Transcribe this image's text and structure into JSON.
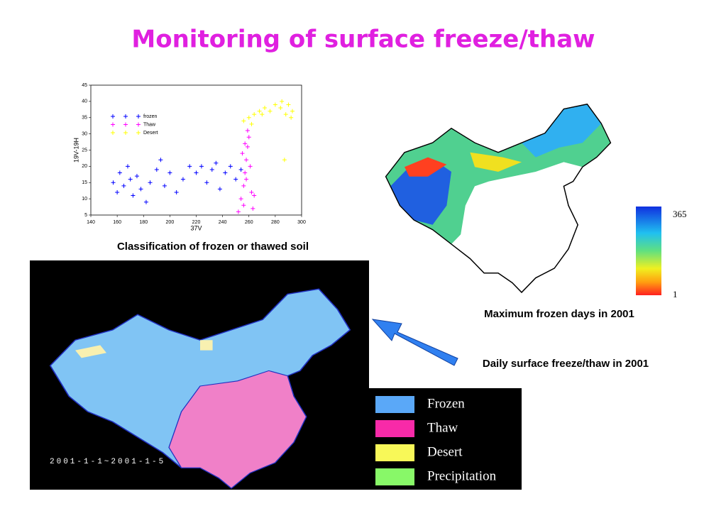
{
  "title": "Monitoring of surface freeze/thaw",
  "chart_data": {
    "type": "scatter",
    "x_label": "37V",
    "y_label": "19V-19H",
    "xlim": [
      140,
      300
    ],
    "ylim": [
      5,
      45
    ],
    "xticks": [
      140,
      160,
      180,
      200,
      220,
      240,
      260,
      280,
      300
    ],
    "yticks": [
      5,
      10,
      15,
      20,
      25,
      30,
      35,
      40,
      45
    ],
    "series": [
      {
        "name": "frozen",
        "color": "#0000ff",
        "x": [
          157,
          160,
          162,
          165,
          168,
          170,
          172,
          175,
          178,
          182,
          185,
          190,
          193,
          196,
          200,
          205,
          210,
          215,
          220,
          224,
          228,
          232,
          235,
          238,
          242,
          246,
          250,
          254
        ],
        "values": [
          15,
          12,
          18,
          14,
          20,
          16,
          11,
          17,
          13,
          9,
          15,
          19,
          22,
          14,
          18,
          12,
          16,
          20,
          18,
          20,
          15,
          19,
          21,
          13,
          18,
          20,
          16,
          19
        ]
      },
      {
        "name": "Thaw",
        "color": "#ff00ff",
        "x": [
          252,
          254,
          256,
          257,
          258,
          259,
          260,
          256,
          262,
          258,
          255,
          261,
          263,
          259,
          257,
          264
        ],
        "values": [
          6,
          10,
          14,
          18,
          22,
          26,
          29,
          8,
          12,
          16,
          24,
          20,
          7,
          31,
          27,
          11
        ]
      },
      {
        "name": "Desert",
        "color": "#ffff00",
        "x": [
          256,
          260,
          264,
          268,
          272,
          276,
          280,
          284,
          288,
          290,
          292,
          287,
          262,
          270,
          285,
          293
        ],
        "values": [
          34,
          35,
          36,
          37,
          38,
          37,
          39,
          38,
          36,
          39,
          35,
          22,
          33,
          36,
          40,
          37
        ]
      }
    ]
  },
  "scatter_caption": "Classification of frozen or thawed soil",
  "frozen_days_map": {
    "caption": "Maximum frozen days in 2001",
    "colorbar_max": 365,
    "colorbar_min": 1
  },
  "daily_map": {
    "caption": "Daily surface freeze/thaw in 2001",
    "date_label": "2001-1-1~2001-1-5",
    "legend": [
      {
        "label": "Frozen",
        "color": "#5aa8f8"
      },
      {
        "label": "Thaw",
        "color": "#f82aa8"
      },
      {
        "label": "Desert",
        "color": "#f8f858"
      },
      {
        "label": "Precipitation",
        "color": "#88f868"
      }
    ]
  }
}
